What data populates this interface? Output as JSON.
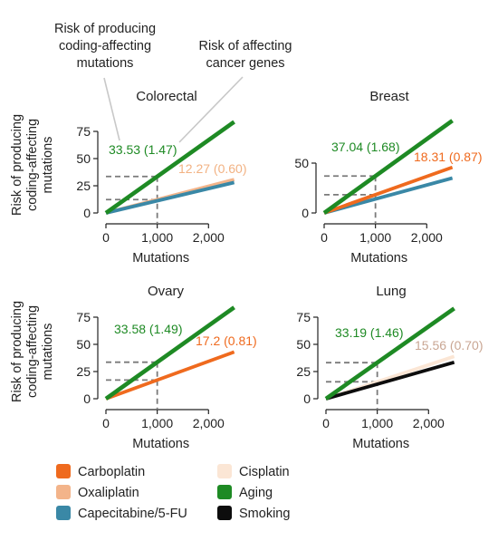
{
  "annotations": {
    "callout_left": [
      "Risk of producing",
      "coding-affecting",
      "mutations"
    ],
    "callout_right": [
      "Risk of affecting",
      "cancer genes"
    ]
  },
  "axis_text": {
    "ylabel_lines": [
      "Risk of producing",
      "coding-affecting",
      "mutations"
    ],
    "xlabel": "Mutations"
  },
  "colors": {
    "carboplatin": "#ef6a1e",
    "oxaliplatin": "#f3b48a",
    "capecitabine": "#3a88a6",
    "cisplatin": "#fbe6d5",
    "aging": "#1e8a24",
    "smoking": "#0d0d0d",
    "label_oxaliplatin_text": "#f2b283",
    "label_cisplatin_text": "#c9a693",
    "guide": "#7a7a7a",
    "axis": "#222222"
  },
  "legend": [
    {
      "label": "Carboplatin",
      "color": "#ef6a1e"
    },
    {
      "label": "Cisplatin",
      "color": "#fbe6d5"
    },
    {
      "label": "Oxaliplatin",
      "color": "#f3b48a"
    },
    {
      "label": "Aging",
      "color": "#1e8a24"
    },
    {
      "label": "Capecitabine/5-FU",
      "color": "#3a88a6"
    },
    {
      "label": "Smoking",
      "color": "#0d0d0d"
    }
  ],
  "chart_data": [
    {
      "type": "line",
      "title": "Colorectal",
      "xlabel": "Mutations",
      "ylabel": "Risk of producing coding-affecting mutations",
      "xlim": [
        0,
        2500
      ],
      "ylim": [
        0,
        85
      ],
      "xticks": [
        "0",
        "1,000",
        "2,000"
      ],
      "yticks": [
        "0",
        "25",
        "50",
        "75"
      ],
      "series": [
        {
          "name": "Oxaliplatin",
          "x": [
            0,
            2500
          ],
          "y": [
            0,
            30.7
          ]
        },
        {
          "name": "Capecitabine/5-FU",
          "x": [
            0,
            2500
          ],
          "y": [
            0,
            28.0
          ]
        },
        {
          "name": "Aging",
          "x": [
            0,
            2500
          ],
          "y": [
            0,
            83.8
          ]
        }
      ],
      "guides": [
        {
          "x": 1000,
          "y": 33.53
        },
        {
          "x": 1000,
          "y": 12.27
        }
      ],
      "labels": [
        {
          "text": "33.53 (1.47)",
          "series": "Aging"
        },
        {
          "text": "12.27 (0.60)",
          "series": "Oxaliplatin"
        }
      ]
    },
    {
      "type": "line",
      "title": "Breast",
      "xlabel": "Mutations",
      "ylabel": "",
      "xlim": [
        0,
        2500
      ],
      "ylim": [
        0,
        92
      ],
      "xticks": [
        "0",
        "1,000",
        "2,000"
      ],
      "yticks": [
        "0",
        "50"
      ],
      "series": [
        {
          "name": "Capecitabine/5-FU",
          "x": [
            0,
            2500
          ],
          "y": [
            0,
            35.0
          ]
        },
        {
          "name": "Carboplatin",
          "x": [
            0,
            2500
          ],
          "y": [
            0,
            45.8
          ]
        },
        {
          "name": "Aging",
          "x": [
            0,
            2500
          ],
          "y": [
            0,
            92.6
          ]
        }
      ],
      "guides": [
        {
          "x": 1000,
          "y": 37.04
        },
        {
          "x": 1000,
          "y": 18.31
        }
      ],
      "labels": [
        {
          "text": "37.04 (1.68)",
          "series": "Aging"
        },
        {
          "text": "18.31 (0.87)",
          "series": "Carboplatin"
        }
      ]
    },
    {
      "type": "line",
      "title": "Ovary",
      "xlabel": "Mutations",
      "ylabel": "Risk of producing coding-affecting mutations",
      "xlim": [
        0,
        2500
      ],
      "ylim": [
        0,
        85
      ],
      "xticks": [
        "0",
        "1,000",
        "2,000"
      ],
      "yticks": [
        "0",
        "25",
        "50",
        "75"
      ],
      "series": [
        {
          "name": "Carboplatin",
          "x": [
            0,
            2500
          ],
          "y": [
            0,
            43.0
          ]
        },
        {
          "name": "Aging",
          "x": [
            0,
            2500
          ],
          "y": [
            0,
            84.0
          ]
        }
      ],
      "guides": [
        {
          "x": 1000,
          "y": 33.58
        },
        {
          "x": 1000,
          "y": 17.2
        }
      ],
      "labels": [
        {
          "text": "33.58 (1.49)",
          "series": "Aging"
        },
        {
          "text": "17.2 (0.81)",
          "series": "Carboplatin"
        }
      ]
    },
    {
      "type": "line",
      "title": "Lung",
      "xlabel": "Mutations",
      "ylabel": "",
      "xlim": [
        0,
        2500
      ],
      "ylim": [
        0,
        85
      ],
      "xticks": [
        "0",
        "1,000",
        "2,000"
      ],
      "yticks": [
        "0",
        "25",
        "50",
        "75"
      ],
      "series": [
        {
          "name": "Cisplatin",
          "x": [
            0,
            2500
          ],
          "y": [
            0,
            38.9
          ]
        },
        {
          "name": "Smoking",
          "x": [
            0,
            2500
          ],
          "y": [
            0,
            33.5
          ]
        },
        {
          "name": "Aging",
          "x": [
            0,
            2500
          ],
          "y": [
            0,
            83.0
          ]
        }
      ],
      "guides": [
        {
          "x": 1000,
          "y": 33.19
        },
        {
          "x": 1000,
          "y": 15.56
        }
      ],
      "labels": [
        {
          "text": "33.19 (1.46)",
          "series": "Aging"
        },
        {
          "text": "15.56 (0.70)",
          "series": "Cisplatin"
        }
      ]
    }
  ]
}
